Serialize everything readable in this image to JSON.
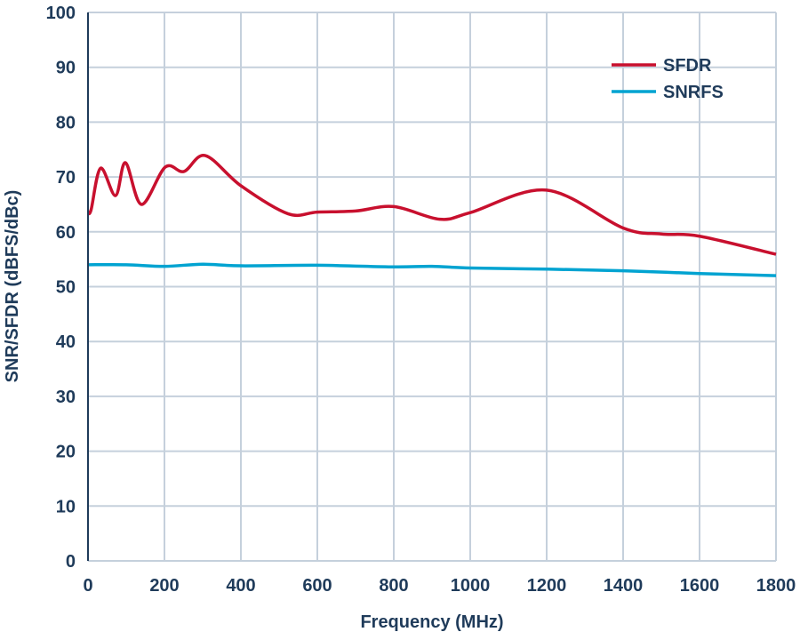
{
  "chart_data": {
    "type": "line",
    "title": "",
    "xlabel": "Frequency (MHz)",
    "ylabel": "SNR/SFDR (dBFS/dBc)",
    "xlim": [
      0,
      1800
    ],
    "ylim": [
      0,
      100
    ],
    "xticks": [
      0,
      200,
      400,
      600,
      800,
      1000,
      1200,
      1400,
      1600,
      1800
    ],
    "yticks": [
      0,
      10,
      20,
      30,
      40,
      50,
      60,
      70,
      80,
      90,
      100
    ],
    "grid": true,
    "legend": "top-right",
    "series": [
      {
        "name": "SFDR",
        "color": "#c8102e",
        "x": [
          0,
          8,
          33,
          72,
          98,
          140,
          202,
          251,
          307,
          400,
          523,
          600,
          700,
          800,
          920,
          1000,
          1200,
          1400,
          1500,
          1600,
          1800
        ],
        "y": [
          63.6,
          64,
          71.6,
          66.6,
          72.6,
          65,
          71.8,
          71,
          73.9,
          68.4,
          63.3,
          63.6,
          63.8,
          64.6,
          62.3,
          63.5,
          67.6,
          60.7,
          59.6,
          59.2,
          55.9
        ]
      },
      {
        "name": "SNRFS",
        "color": "#00a3d1",
        "x": [
          0,
          100,
          200,
          300,
          400,
          600,
          800,
          900,
          1000,
          1200,
          1400,
          1600,
          1800
        ],
        "y": [
          54,
          54,
          53.7,
          54.1,
          53.8,
          53.9,
          53.6,
          53.7,
          53.4,
          53.2,
          52.9,
          52.4,
          52.0
        ]
      }
    ]
  }
}
